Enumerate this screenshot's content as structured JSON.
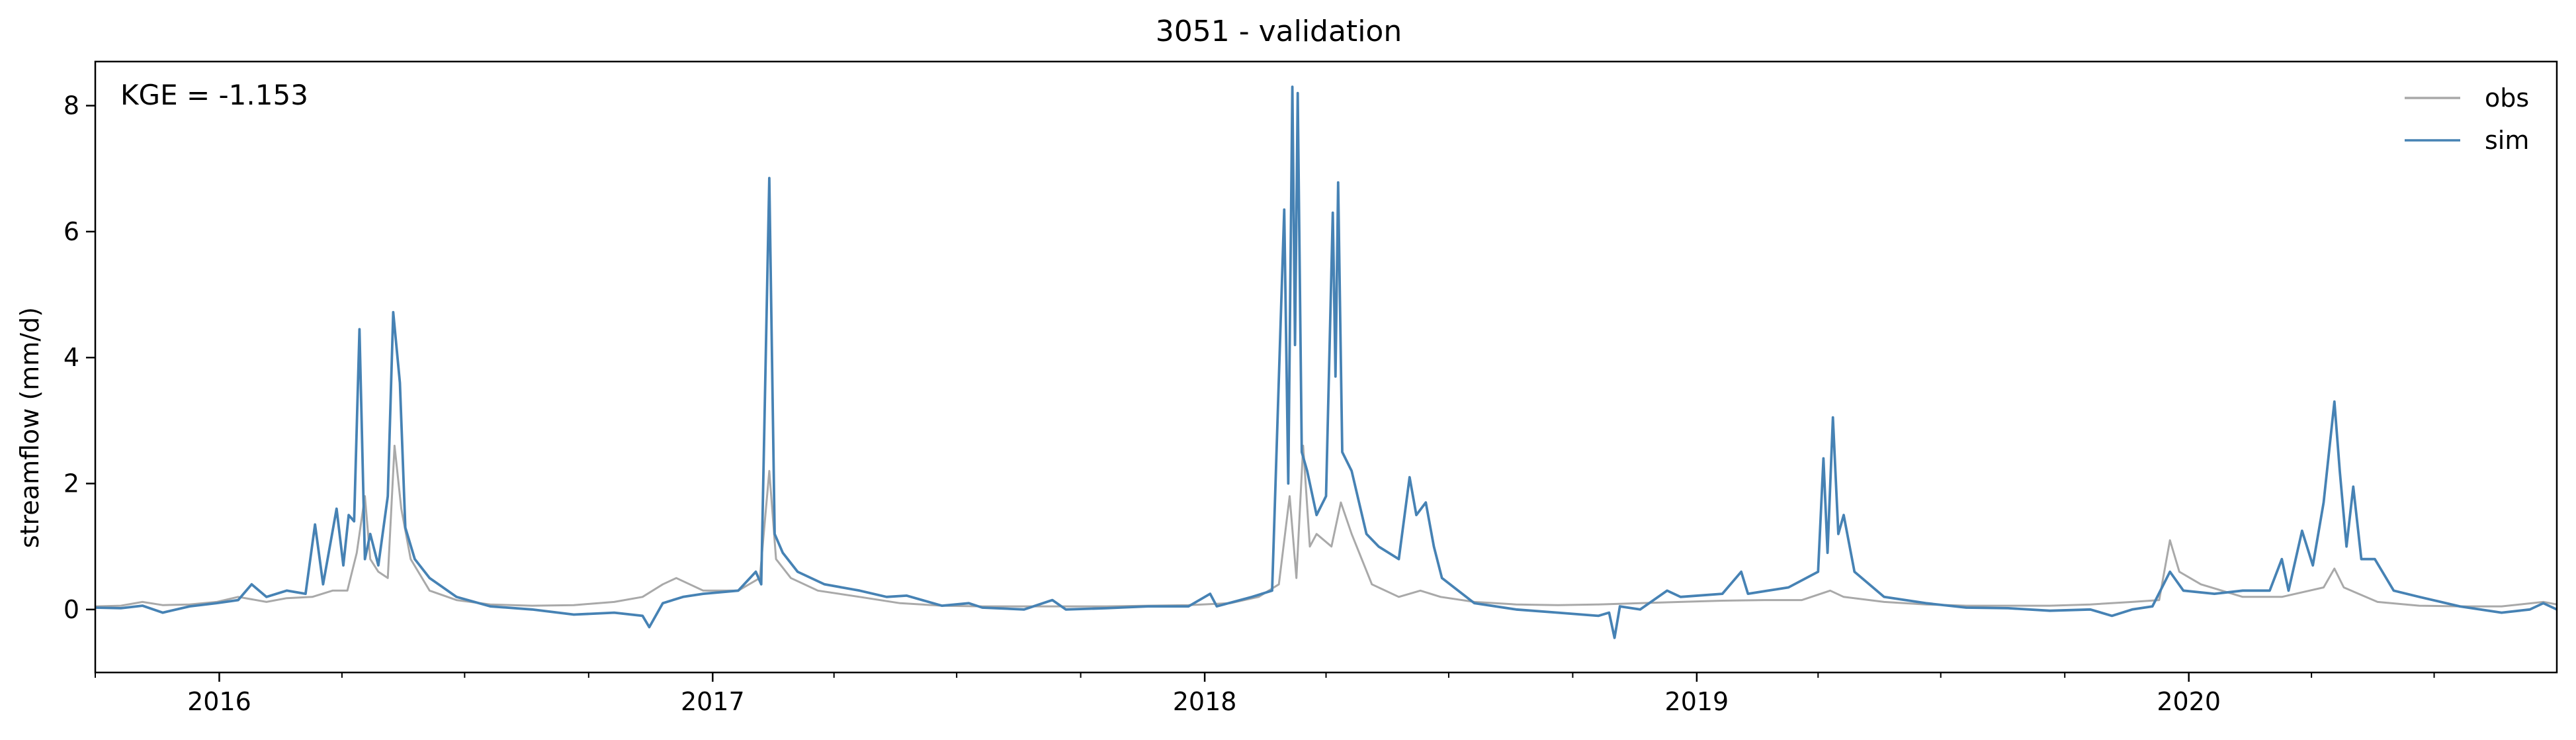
{
  "chart_data": {
    "type": "line",
    "title": "3051 - validation",
    "xlabel": "",
    "ylabel": "streamflow (mm/d)",
    "annotation": "KGE = -1.153",
    "xlim": [
      "2015-10-01",
      "2020-09-30"
    ],
    "ylim": [
      -1.0,
      8.7
    ],
    "x_ticks": [
      "2016",
      "2017",
      "2018",
      "2019",
      "2020"
    ],
    "x_tick_dates": [
      "2016-01-01",
      "2017-01-01",
      "2018-01-01",
      "2019-01-01",
      "2020-01-01"
    ],
    "y_ticks": [
      0,
      2,
      4,
      6,
      8
    ],
    "grid": false,
    "legend": "top-right",
    "series": [
      {
        "name": "obs",
        "color": "#a9a9a9",
        "points": [
          [
            "2015-10-01",
            0.05
          ],
          [
            "2015-10-20",
            0.06
          ],
          [
            "2015-11-05",
            0.12
          ],
          [
            "2015-11-20",
            0.07
          ],
          [
            "2015-12-10",
            0.08
          ],
          [
            "2015-12-30",
            0.12
          ],
          [
            "2016-01-15",
            0.2
          ],
          [
            "2016-02-05",
            0.12
          ],
          [
            "2016-02-20",
            0.18
          ],
          [
            "2016-03-10",
            0.2
          ],
          [
            "2016-03-25",
            0.3
          ],
          [
            "2016-04-05",
            0.3
          ],
          [
            "2016-04-12",
            0.9
          ],
          [
            "2016-04-18",
            1.8
          ],
          [
            "2016-04-22",
            0.8
          ],
          [
            "2016-04-28",
            0.6
          ],
          [
            "2016-05-05",
            0.5
          ],
          [
            "2016-05-10",
            2.6
          ],
          [
            "2016-05-15",
            1.6
          ],
          [
            "2016-05-22",
            0.8
          ],
          [
            "2016-06-05",
            0.3
          ],
          [
            "2016-06-25",
            0.15
          ],
          [
            "2016-07-20",
            0.08
          ],
          [
            "2016-08-20",
            0.06
          ],
          [
            "2016-09-20",
            0.07
          ],
          [
            "2016-10-20",
            0.12
          ],
          [
            "2016-11-10",
            0.2
          ],
          [
            "2016-11-25",
            0.4
          ],
          [
            "2016-12-05",
            0.5
          ],
          [
            "2016-12-15",
            0.4
          ],
          [
            "2016-12-25",
            0.3
          ],
          [
            "2017-01-20",
            0.3
          ],
          [
            "2017-02-05",
            0.5
          ],
          [
            "2017-02-12",
            2.2
          ],
          [
            "2017-02-17",
            0.8
          ],
          [
            "2017-02-28",
            0.5
          ],
          [
            "2017-03-20",
            0.3
          ],
          [
            "2017-04-20",
            0.2
          ],
          [
            "2017-05-20",
            0.1
          ],
          [
            "2017-06-20",
            0.06
          ],
          [
            "2017-07-20",
            0.05
          ],
          [
            "2017-08-20",
            0.05
          ],
          [
            "2017-09-20",
            0.05
          ],
          [
            "2017-10-20",
            0.05
          ],
          [
            "2017-11-20",
            0.06
          ],
          [
            "2017-12-20",
            0.07
          ],
          [
            "2018-01-20",
            0.1
          ],
          [
            "2018-02-10",
            0.2
          ],
          [
            "2018-02-25",
            0.4
          ],
          [
            "2018-03-05",
            1.8
          ],
          [
            "2018-03-10",
            0.5
          ],
          [
            "2018-03-15",
            2.6
          ],
          [
            "2018-03-20",
            1.0
          ],
          [
            "2018-03-25",
            1.2
          ],
          [
            "2018-04-05",
            1.0
          ],
          [
            "2018-04-12",
            1.7
          ],
          [
            "2018-04-20",
            1.2
          ],
          [
            "2018-05-05",
            0.4
          ],
          [
            "2018-05-25",
            0.2
          ],
          [
            "2018-06-10",
            0.3
          ],
          [
            "2018-06-25",
            0.2
          ],
          [
            "2018-07-20",
            0.12
          ],
          [
            "2018-08-20",
            0.08
          ],
          [
            "2018-09-20",
            0.07
          ],
          [
            "2018-10-20",
            0.08
          ],
          [
            "2018-11-20",
            0.1
          ],
          [
            "2018-12-20",
            0.12
          ],
          [
            "2019-01-20",
            0.14
          ],
          [
            "2019-02-20",
            0.15
          ],
          [
            "2019-03-20",
            0.15
          ],
          [
            "2019-04-10",
            0.3
          ],
          [
            "2019-04-20",
            0.2
          ],
          [
            "2019-05-20",
            0.12
          ],
          [
            "2019-06-20",
            0.08
          ],
          [
            "2019-07-20",
            0.06
          ],
          [
            "2019-08-20",
            0.06
          ],
          [
            "2019-09-20",
            0.06
          ],
          [
            "2019-10-20",
            0.08
          ],
          [
            "2019-11-20",
            0.12
          ],
          [
            "2019-12-10",
            0.15
          ],
          [
            "2019-12-18",
            1.1
          ],
          [
            "2019-12-25",
            0.6
          ],
          [
            "2020-01-10",
            0.4
          ],
          [
            "2020-02-10",
            0.2
          ],
          [
            "2020-03-10",
            0.2
          ],
          [
            "2020-04-10",
            0.35
          ],
          [
            "2020-04-18",
            0.65
          ],
          [
            "2020-04-25",
            0.35
          ],
          [
            "2020-05-20",
            0.12
          ],
          [
            "2020-06-20",
            0.06
          ],
          [
            "2020-07-20",
            0.05
          ],
          [
            "2020-08-20",
            0.05
          ],
          [
            "2020-09-20",
            0.12
          ],
          [
            "2020-09-30",
            0.08
          ]
        ]
      },
      {
        "name": "sim",
        "color": "#4682b4",
        "points": [
          [
            "2015-10-01",
            0.03
          ],
          [
            "2015-10-20",
            0.02
          ],
          [
            "2015-11-05",
            0.06
          ],
          [
            "2015-11-20",
            -0.05
          ],
          [
            "2015-12-10",
            0.05
          ],
          [
            "2015-12-30",
            0.1
          ],
          [
            "2016-01-15",
            0.15
          ],
          [
            "2016-01-25",
            0.4
          ],
          [
            "2016-02-05",
            0.2
          ],
          [
            "2016-02-20",
            0.3
          ],
          [
            "2016-03-05",
            0.25
          ],
          [
            "2016-03-12",
            1.35
          ],
          [
            "2016-03-18",
            0.4
          ],
          [
            "2016-03-28",
            1.6
          ],
          [
            "2016-04-02",
            0.7
          ],
          [
            "2016-04-06",
            1.5
          ],
          [
            "2016-04-10",
            1.4
          ],
          [
            "2016-04-14",
            4.45
          ],
          [
            "2016-04-18",
            0.8
          ],
          [
            "2016-04-22",
            1.2
          ],
          [
            "2016-04-28",
            0.7
          ],
          [
            "2016-05-05",
            1.8
          ],
          [
            "2016-05-09",
            4.72
          ],
          [
            "2016-05-14",
            3.6
          ],
          [
            "2016-05-18",
            1.3
          ],
          [
            "2016-05-25",
            0.8
          ],
          [
            "2016-06-05",
            0.5
          ],
          [
            "2016-06-25",
            0.2
          ],
          [
            "2016-07-20",
            0.05
          ],
          [
            "2016-08-20",
            0.0
          ],
          [
            "2016-09-20",
            -0.08
          ],
          [
            "2016-10-20",
            -0.05
          ],
          [
            "2016-11-10",
            -0.1
          ],
          [
            "2016-11-15",
            -0.28
          ],
          [
            "2016-11-25",
            0.1
          ],
          [
            "2016-12-10",
            0.2
          ],
          [
            "2016-12-25",
            0.25
          ],
          [
            "2017-01-20",
            0.3
          ],
          [
            "2017-02-02",
            0.6
          ],
          [
            "2017-02-06",
            0.4
          ],
          [
            "2017-02-12",
            6.85
          ],
          [
            "2017-02-16",
            1.2
          ],
          [
            "2017-02-22",
            0.9
          ],
          [
            "2017-03-05",
            0.6
          ],
          [
            "2017-03-25",
            0.4
          ],
          [
            "2017-04-20",
            0.3
          ],
          [
            "2017-05-10",
            0.2
          ],
          [
            "2017-05-25",
            0.22
          ],
          [
            "2017-06-20",
            0.06
          ],
          [
            "2017-07-10",
            0.1
          ],
          [
            "2017-07-20",
            0.03
          ],
          [
            "2017-08-20",
            0.0
          ],
          [
            "2017-09-10",
            0.15
          ],
          [
            "2017-09-20",
            0.0
          ],
          [
            "2017-10-20",
            0.02
          ],
          [
            "2017-11-20",
            0.05
          ],
          [
            "2017-12-20",
            0.05
          ],
          [
            "2018-01-05",
            0.25
          ],
          [
            "2018-01-10",
            0.05
          ],
          [
            "2018-02-05",
            0.2
          ],
          [
            "2018-02-20",
            0.3
          ],
          [
            "2018-03-01",
            6.35
          ],
          [
            "2018-03-04",
            2.0
          ],
          [
            "2018-03-07",
            8.3
          ],
          [
            "2018-03-09",
            4.2
          ],
          [
            "2018-03-11",
            8.2
          ],
          [
            "2018-03-14",
            2.5
          ],
          [
            "2018-03-18",
            2.2
          ],
          [
            "2018-03-25",
            1.5
          ],
          [
            "2018-04-01",
            1.8
          ],
          [
            "2018-04-06",
            6.3
          ],
          [
            "2018-04-08",
            3.7
          ],
          [
            "2018-04-10",
            6.78
          ],
          [
            "2018-04-13",
            2.5
          ],
          [
            "2018-04-20",
            2.2
          ],
          [
            "2018-05-01",
            1.2
          ],
          [
            "2018-05-10",
            1.0
          ],
          [
            "2018-05-25",
            0.8
          ],
          [
            "2018-06-02",
            2.1
          ],
          [
            "2018-06-07",
            1.5
          ],
          [
            "2018-06-14",
            1.7
          ],
          [
            "2018-06-20",
            1.0
          ],
          [
            "2018-06-26",
            0.5
          ],
          [
            "2018-07-20",
            0.1
          ],
          [
            "2018-08-20",
            0.0
          ],
          [
            "2018-09-20",
            -0.05
          ],
          [
            "2018-10-20",
            -0.1
          ],
          [
            "2018-10-28",
            -0.05
          ],
          [
            "2018-11-01",
            -0.45
          ],
          [
            "2018-11-05",
            0.05
          ],
          [
            "2018-11-20",
            0.0
          ],
          [
            "2018-12-10",
            0.3
          ],
          [
            "2018-12-20",
            0.2
          ],
          [
            "2019-01-20",
            0.25
          ],
          [
            "2019-02-03",
            0.6
          ],
          [
            "2019-02-08",
            0.25
          ],
          [
            "2019-03-10",
            0.35
          ],
          [
            "2019-04-01",
            0.6
          ],
          [
            "2019-04-05",
            2.4
          ],
          [
            "2019-04-08",
            0.9
          ],
          [
            "2019-04-12",
            3.05
          ],
          [
            "2019-04-16",
            1.2
          ],
          [
            "2019-04-20",
            1.5
          ],
          [
            "2019-04-28",
            0.6
          ],
          [
            "2019-05-20",
            0.2
          ],
          [
            "2019-06-20",
            0.1
          ],
          [
            "2019-07-20",
            0.03
          ],
          [
            "2019-08-20",
            0.02
          ],
          [
            "2019-09-20",
            -0.02
          ],
          [
            "2019-10-20",
            0.0
          ],
          [
            "2019-11-05",
            -0.1
          ],
          [
            "2019-11-20",
            0.0
          ],
          [
            "2019-12-05",
            0.05
          ],
          [
            "2019-12-18",
            0.6
          ],
          [
            "2019-12-28",
            0.3
          ],
          [
            "2020-01-20",
            0.25
          ],
          [
            "2020-02-10",
            0.3
          ],
          [
            "2020-03-01",
            0.3
          ],
          [
            "2020-03-10",
            0.8
          ],
          [
            "2020-03-15",
            0.3
          ],
          [
            "2020-03-25",
            1.25
          ],
          [
            "2020-04-02",
            0.7
          ],
          [
            "2020-04-10",
            1.7
          ],
          [
            "2020-04-18",
            3.3
          ],
          [
            "2020-04-22",
            2.2
          ],
          [
            "2020-04-27",
            1.0
          ],
          [
            "2020-05-02",
            1.95
          ],
          [
            "2020-05-08",
            0.8
          ],
          [
            "2020-05-18",
            0.8
          ],
          [
            "2020-06-01",
            0.3
          ],
          [
            "2020-06-20",
            0.2
          ],
          [
            "2020-07-20",
            0.05
          ],
          [
            "2020-08-20",
            -0.05
          ],
          [
            "2020-09-10",
            0.0
          ],
          [
            "2020-09-20",
            0.1
          ],
          [
            "2020-09-30",
            0.0
          ]
        ]
      }
    ]
  }
}
